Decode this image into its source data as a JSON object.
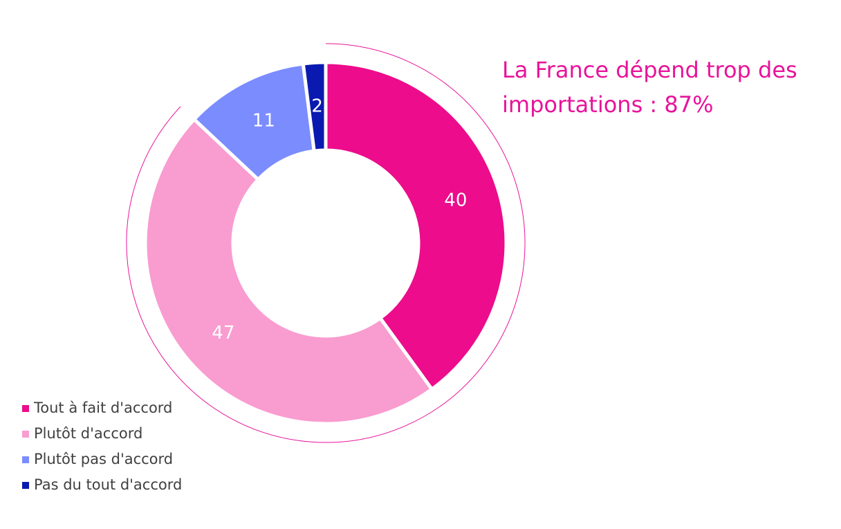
{
  "chart_data": {
    "type": "donut",
    "annotation": "La France dépend trop des importations : 87%",
    "categories": [
      "Tout à fait d'accord",
      "Plutôt d'accord",
      "Plutôt pas d'accord",
      "Pas du tout d'accord"
    ],
    "values": [
      40,
      47,
      11,
      2
    ],
    "colors": [
      "#ec0c8c",
      "#f99cd0",
      "#7b8cff",
      "#0a1ab0"
    ],
    "legend": "bottom-left"
  }
}
